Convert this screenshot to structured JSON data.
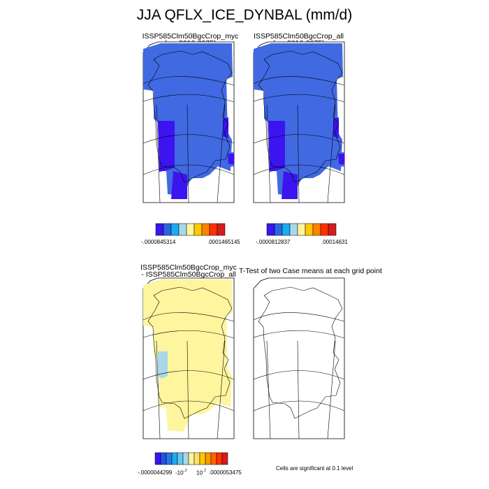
{
  "figure_title": "JJA QFLX_ICE_DYNBAL (mm/d)",
  "panels": {
    "top_left": {
      "title_line1": "ISSP585Clm50BgcCrop_myc",
      "title_line2": "(yrs 2016-2075)"
    },
    "top_right": {
      "title_line1": "ISSP585Clm50BgcCrop_all",
      "title_line2": "(yrs 2016-2075)"
    },
    "bottom_left": {
      "title_line1": "ISSP585Clm50BgcCrop_myc",
      "title_line2": "- ISSP585Clm50BgcCrop_all"
    },
    "bottom_right": {
      "title": "T-Test of two Case means at each grid point"
    }
  },
  "colorbars": {
    "top_left": {
      "min_label": "-.0000845314",
      "max_label": ".0001465145",
      "colors": [
        "#3c14f0",
        "#2868dc",
        "#1eaaf0",
        "#a8d8ea",
        "#fff59e",
        "#ffc800",
        "#ff8200",
        "#ff3200",
        "#d21e1e"
      ]
    },
    "top_right": {
      "min_label": "-.0000812837",
      "max_label": ".00014631",
      "colors": [
        "#3c14f0",
        "#2868dc",
        "#1eaaf0",
        "#a8d8ea",
        "#fff59e",
        "#ffc800",
        "#ff8200",
        "#ff3200",
        "#d21e1e"
      ]
    },
    "bottom_left": {
      "labels": [
        "-.0000044299",
        "-10",
        "10",
        ".0000053475"
      ],
      "exponent": "-7",
      "colors": [
        "#3c14f0",
        "#2850e6",
        "#2878e6",
        "#1eaaf0",
        "#64c8f0",
        "#a8d8ea",
        "#fff59e",
        "#ffe066",
        "#ffc800",
        "#ff9600",
        "#ff6400",
        "#ff3200",
        "#d21e1e"
      ]
    }
  },
  "significance_note": "Cells are significant at 0.1 level",
  "map_colors": {
    "main_blue": "#4169e1",
    "deep_blue": "#3c14f0",
    "diff_yellow": "#fff59e",
    "diff_lightblue": "#a8d8ea"
  }
}
